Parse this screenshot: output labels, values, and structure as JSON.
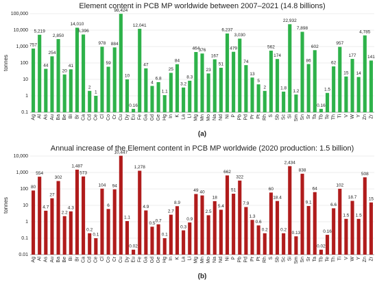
{
  "chart_data": [
    {
      "type": "bar",
      "title": "Element content in PCB MP worldwide between 2007–2021 (14.8 billions)",
      "panel_label": "(a)",
      "y_label": "tonnes",
      "log_scale": true,
      "grid": true,
      "color": "#2eb24a",
      "categories": [
        "Ag",
        "Al",
        "As",
        "Au",
        "Ba",
        "Be",
        "Bi",
        "Br",
        "Ca",
        "Cd",
        "Ce",
        "Cl",
        "Co",
        "Cr",
        "Cu",
        "Dy",
        "Eu",
        "Fe",
        "Ga",
        "Gd",
        "Ge",
        "Hg",
        "In",
        "K",
        "La",
        "Li",
        "Mg",
        "Mn",
        "Mo",
        "Na",
        "Nd",
        "Ni",
        "P",
        "Pb",
        "Pd",
        "Pr",
        "Pt",
        "Rh",
        "S",
        "Sb",
        "Sc",
        "Si",
        "Sm",
        "Sn",
        "Sr",
        "Ta",
        "Tb",
        "Te",
        "Th",
        "Ti",
        "V",
        "W",
        "Y",
        "Zn",
        "Zr"
      ],
      "values": [
        757,
        5219,
        44,
        254,
        2850,
        20,
        41,
        14010,
        5396,
        2,
        1,
        978,
        59,
        884,
        98424,
        10,
        0.16,
        12041,
        47,
        4,
        6.8,
        1.1,
        25,
        84,
        3.2,
        8.3,
        464,
        376,
        23,
        167,
        51,
        6237,
        479,
        3030,
        74,
        13,
        5,
        2,
        562,
        174,
        1.8,
        22932,
        1.2,
        7898,
        86,
        602,
        0.16,
        1.5,
        62,
        957,
        15,
        177,
        14,
        4785,
        141
      ],
      "value_labels": [
        "757",
        "5,219",
        "44",
        "254",
        "2,850",
        "20",
        "41",
        "14,010",
        "5,396",
        "2",
        "1",
        "978",
        "59",
        "884",
        "98,424",
        "10",
        "0.16",
        "12,041",
        "47",
        "4",
        "6.8",
        "1.1",
        "25",
        "84",
        "3.2",
        "8.3",
        "464",
        "376",
        "23",
        "167",
        "51",
        "6,237",
        "479",
        "3,030",
        "74",
        "13",
        "5",
        "2",
        "562",
        "174",
        "1.8",
        "22,932",
        "1.2",
        "7,898",
        "86",
        "602",
        "0.16",
        "1.5",
        "62",
        "957",
        "15",
        "177",
        "14",
        "4,785",
        "141"
      ],
      "ylim": [
        0.1,
        100000
      ],
      "yticks": [
        0.1,
        1,
        10,
        100,
        {
          "value": 1000,
          "label": "1,000"
        },
        {
          "value": 10000,
          "label": "10,000"
        },
        {
          "value": 100000,
          "label": "100,000"
        }
      ]
    },
    {
      "type": "bar",
      "title": "Annual increase of the Element content in PCB MP worldwide (2020 production: 1.5 billion)",
      "panel_label": "(b)",
      "y_label": "tonnes",
      "log_scale": true,
      "grid": true,
      "color": "#b01c1c",
      "categories": [
        "Ag",
        "Al",
        "As",
        "Au",
        "Ba",
        "Be",
        "Bi",
        "Br",
        "Ca",
        "Cd",
        "Ce",
        "Cl",
        "Co",
        "Cr",
        "Cu",
        "Dy",
        "Eu",
        "Fe",
        "Ga",
        "Gd",
        "Ge",
        "Hg",
        "In",
        "K",
        "La",
        "Li",
        "Mg",
        "Mn",
        "Mo",
        "Na",
        "Nd",
        "Ni",
        "P",
        "Pb",
        "Pd",
        "Pr",
        "Pt",
        "Rh",
        "S",
        "Sb",
        "Sc",
        "Si",
        "Sm",
        "Sn",
        "Sr",
        "Ta",
        "Tb",
        "Te",
        "Th",
        "Ti",
        "V",
        "W",
        "Y",
        "Zn",
        "Zr"
      ],
      "values": [
        80,
        554,
        4.7,
        27,
        302,
        2.2,
        4.3,
        1487,
        573,
        0.2,
        0.1,
        104,
        6,
        94,
        10447,
        1.1,
        0.02,
        1278,
        4.9,
        0.5,
        0.7,
        0.1,
        2.7,
        8.9,
        0.3,
        0.9,
        49,
        40,
        2.5,
        18,
        5.4,
        662,
        51,
        322,
        7.9,
        1.3,
        0.6,
        0.2,
        60,
        18.4,
        0.2,
        2434,
        0.13,
        838,
        9.1,
        64,
        0.02,
        0.16,
        6.6,
        102,
        1.5,
        18.7,
        1.5,
        508,
        15
      ],
      "value_labels": [
        "80",
        "554",
        "4.7",
        "27",
        "302",
        "2.2",
        "4.3",
        "1,487",
        "573",
        "0.2",
        "0.1",
        "104",
        "6",
        "94",
        "10,447",
        "1.1",
        "0.02",
        "1,278",
        "4.9",
        "0.5",
        "0.7",
        "0.1",
        "2.7",
        "8.9",
        "0.3",
        "0.9",
        "49",
        "40",
        "2.5",
        "18",
        "5.4",
        "662",
        "51",
        "322",
        "7.9",
        "1.3",
        "0.6",
        "0.2",
        "60",
        "18.4",
        "0.2",
        "2,434",
        "0.13",
        "838",
        "9.1",
        "64",
        "0.02",
        "0.16",
        "6.6",
        "102",
        "1.5",
        "18.7",
        "1.5",
        "508",
        "15"
      ],
      "ylim": [
        0.01,
        10000
      ],
      "yticks": [
        0.01,
        0.1,
        1,
        10,
        100,
        {
          "value": 1000,
          "label": "1,000"
        },
        {
          "value": 10000,
          "label": "10,000"
        }
      ]
    }
  ]
}
